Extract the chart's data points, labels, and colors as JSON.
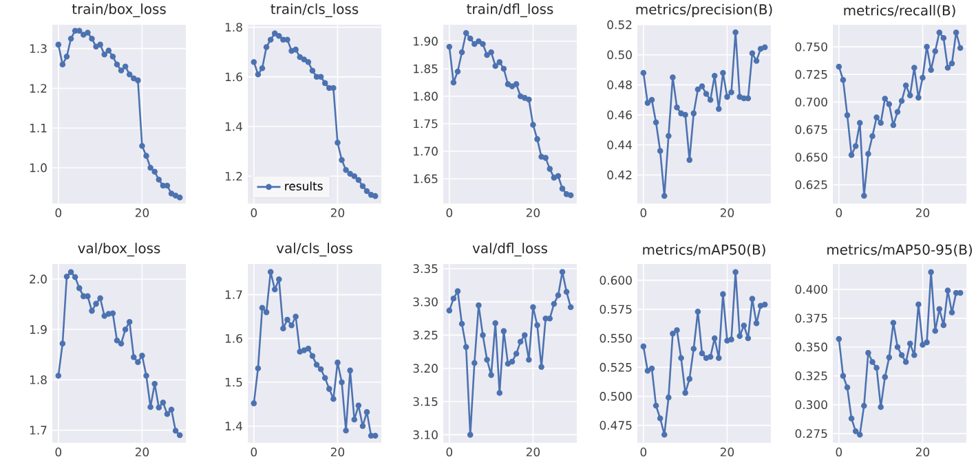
{
  "chart_data": [
    {
      "type": "line",
      "title": "train/box_loss",
      "x": [
        0,
        1,
        2,
        3,
        4,
        5,
        6,
        7,
        8,
        9,
        10,
        11,
        12,
        13,
        14,
        15,
        16,
        17,
        18,
        19,
        20,
        21,
        22,
        23,
        24,
        25,
        26,
        27,
        28,
        29
      ],
      "xlim": [
        -1.45,
        30.45
      ],
      "xticks": [
        0,
        20
      ],
      "ylim": [
        0.91,
        1.36
      ],
      "yticks": [
        {
          "value": 1.0,
          "label": "1.0"
        },
        1.1,
        1.2,
        1.3
      ],
      "grid": true,
      "marker": "circle",
      "series": [
        {
          "color": "#4c72b0",
          "values": [
            1.31,
            1.26,
            1.28,
            1.325,
            1.345,
            1.345,
            1.335,
            1.34,
            1.325,
            1.305,
            1.31,
            1.285,
            1.295,
            1.28,
            1.26,
            1.245,
            1.255,
            1.235,
            1.225,
            1.22,
            1.055,
            1.03,
            1.0,
            0.99,
            0.97,
            0.955,
            0.955,
            0.935,
            0.93,
            0.925
          ]
        }
      ]
    },
    {
      "type": "line",
      "title": "train/cls_loss",
      "x": [
        0,
        1,
        2,
        3,
        4,
        5,
        6,
        7,
        8,
        9,
        10,
        11,
        12,
        13,
        14,
        15,
        16,
        17,
        18,
        19,
        20,
        21,
        22,
        23,
        24,
        25,
        26,
        27,
        28,
        29
      ],
      "xlim": [
        -1.45,
        30.45
      ],
      "xticks": [
        0,
        20
      ],
      "ylim": [
        1.09,
        1.81
      ],
      "yticks": [
        1.2,
        1.4,
        1.6,
        1.8
      ],
      "grid": true,
      "marker": "circle",
      "legend": "bottom left",
      "series": [
        {
          "name": "results",
          "color": "#4c72b0",
          "values": [
            1.66,
            1.61,
            1.635,
            1.72,
            1.75,
            1.775,
            1.765,
            1.75,
            1.75,
            1.705,
            1.71,
            1.68,
            1.67,
            1.66,
            1.625,
            1.6,
            1.6,
            1.575,
            1.555,
            1.555,
            1.335,
            1.265,
            1.225,
            1.21,
            1.2,
            1.185,
            1.16,
            1.14,
            1.125,
            1.12
          ]
        }
      ]
    },
    {
      "type": "line",
      "title": "train/dfl_loss",
      "x": [
        0,
        1,
        2,
        3,
        4,
        5,
        6,
        7,
        8,
        9,
        10,
        11,
        12,
        13,
        14,
        15,
        16,
        17,
        18,
        19,
        20,
        21,
        22,
        23,
        24,
        25,
        26,
        27,
        28,
        29
      ],
      "xlim": [
        -1.45,
        30.45
      ],
      "xticks": [
        0,
        20
      ],
      "ylim": [
        1.605,
        1.93
      ],
      "yticks": [
        1.65,
        {
          "value": 1.7,
          "label": "1.70"
        },
        1.75,
        {
          "value": 1.8,
          "label": "1.80"
        },
        1.85,
        {
          "value": 1.9,
          "label": "1.90"
        }
      ],
      "grid": true,
      "marker": "circle",
      "series": [
        {
          "color": "#4c72b0",
          "values": [
            1.89,
            1.825,
            1.845,
            1.88,
            1.915,
            1.905,
            1.895,
            1.9,
            1.895,
            1.875,
            1.88,
            1.855,
            1.862,
            1.85,
            1.822,
            1.818,
            1.822,
            1.8,
            1.797,
            1.794,
            1.748,
            1.722,
            1.69,
            1.688,
            1.668,
            1.652,
            1.655,
            1.632,
            1.622,
            1.62
          ]
        }
      ]
    },
    {
      "type": "line",
      "title": "metrics/precision(B)",
      "x": [
        0,
        1,
        2,
        3,
        4,
        5,
        6,
        7,
        8,
        9,
        10,
        11,
        12,
        13,
        14,
        15,
        16,
        17,
        18,
        19,
        20,
        21,
        22,
        23,
        24,
        25,
        26,
        27,
        28,
        29
      ],
      "xlim": [
        -1.45,
        30.45
      ],
      "xticks": [
        0,
        20
      ],
      "ylim": [
        0.401,
        0.52
      ],
      "yticks": [
        0.42,
        0.44,
        0.46,
        0.48,
        {
          "value": 0.5,
          "label": "0.50"
        },
        0.52
      ],
      "grid": true,
      "marker": "circle",
      "series": [
        {
          "color": "#4c72b0",
          "values": [
            0.488,
            0.468,
            0.47,
            0.455,
            0.436,
            0.406,
            0.446,
            0.485,
            0.465,
            0.461,
            0.46,
            0.43,
            0.461,
            0.477,
            0.479,
            0.474,
            0.47,
            0.486,
            0.464,
            0.488,
            0.472,
            0.475,
            0.515,
            0.472,
            0.471,
            0.471,
            0.501,
            0.496,
            0.504,
            0.505
          ]
        }
      ]
    },
    {
      "type": "line",
      "title": "metrics/recall(B)",
      "x": [
        0,
        1,
        2,
        3,
        4,
        5,
        6,
        7,
        8,
        9,
        10,
        11,
        12,
        13,
        14,
        15,
        16,
        17,
        18,
        19,
        20,
        21,
        22,
        23,
        24,
        25,
        26,
        27,
        28,
        29
      ],
      "xlim": [
        -1.45,
        30.45
      ],
      "xticks": [
        0,
        20
      ],
      "ylim": [
        0.608,
        0.77
      ],
      "yticks": [
        0.625,
        {
          "value": 0.65,
          "label": "0.650"
        },
        0.675,
        {
          "value": 0.7,
          "label": "0.700"
        },
        0.725,
        {
          "value": 0.75,
          "label": "0.750"
        }
      ],
      "grid": true,
      "marker": "circle",
      "series": [
        {
          "color": "#4c72b0",
          "values": [
            0.732,
            0.72,
            0.688,
            0.652,
            0.66,
            0.681,
            0.615,
            0.653,
            0.669,
            0.686,
            0.681,
            0.703,
            0.698,
            0.679,
            0.691,
            0.701,
            0.715,
            0.706,
            0.731,
            0.704,
            0.722,
            0.75,
            0.729,
            0.746,
            0.763,
            0.758,
            0.731,
            0.735,
            0.763,
            0.749
          ]
        }
      ]
    },
    {
      "type": "line",
      "title": "val/box_loss",
      "x": [
        0,
        1,
        2,
        3,
        4,
        5,
        6,
        7,
        8,
        9,
        10,
        11,
        12,
        13,
        14,
        15,
        16,
        17,
        18,
        19,
        20,
        21,
        22,
        23,
        24,
        25,
        26,
        27,
        28,
        29
      ],
      "xlim": [
        -1.45,
        30.45
      ],
      "xticks": [
        0,
        20
      ],
      "ylim": [
        1.675,
        2.03
      ],
      "yticks": [
        1.7,
        1.8,
        1.9,
        {
          "value": 2.0,
          "label": "2.0"
        }
      ],
      "grid": true,
      "marker": "circle",
      "series": [
        {
          "color": "#4c72b0",
          "values": [
            1.808,
            1.872,
            2.005,
            2.014,
            2.004,
            1.982,
            1.966,
            1.966,
            1.937,
            1.951,
            1.962,
            1.927,
            1.931,
            1.932,
            1.878,
            1.872,
            1.9,
            1.915,
            1.845,
            1.835,
            1.848,
            1.808,
            1.746,
            1.792,
            1.745,
            1.755,
            1.732,
            1.741,
            1.699,
            1.69
          ]
        }
      ]
    },
    {
      "type": "line",
      "title": "val/cls_loss",
      "x": [
        0,
        1,
        2,
        3,
        4,
        5,
        6,
        7,
        8,
        9,
        10,
        11,
        12,
        13,
        14,
        15,
        16,
        17,
        18,
        19,
        20,
        21,
        22,
        23,
        24,
        25,
        26,
        27,
        28,
        29
      ],
      "xlim": [
        -1.45,
        30.45
      ],
      "xticks": [
        0,
        20
      ],
      "ylim": [
        1.362,
        1.77
      ],
      "yticks": [
        1.4,
        1.5,
        1.6,
        1.7
      ],
      "grid": true,
      "marker": "circle",
      "series": [
        {
          "color": "#4c72b0",
          "values": [
            1.452,
            1.532,
            1.67,
            1.66,
            1.752,
            1.712,
            1.735,
            1.623,
            1.643,
            1.63,
            1.65,
            1.57,
            1.573,
            1.577,
            1.56,
            1.54,
            1.53,
            1.51,
            1.485,
            1.462,
            1.545,
            1.5,
            1.39,
            1.527,
            1.415,
            1.447,
            1.4,
            1.432,
            1.378,
            1.378
          ]
        }
      ]
    },
    {
      "type": "line",
      "title": "val/dfl_loss",
      "x": [
        0,
        1,
        2,
        3,
        4,
        5,
        6,
        7,
        8,
        9,
        10,
        11,
        12,
        13,
        14,
        15,
        16,
        17,
        18,
        19,
        20,
        21,
        22,
        23,
        24,
        25,
        26,
        27,
        28,
        29
      ],
      "xlim": [
        -1.45,
        30.45
      ],
      "xticks": [
        0,
        20
      ],
      "ylim": [
        3.088,
        3.357
      ],
      "yticks": [
        {
          "value": 3.1,
          "label": "3.10"
        },
        3.15,
        {
          "value": 3.2,
          "label": "3.20"
        },
        3.25,
        {
          "value": 3.3,
          "label": "3.30"
        },
        3.35
      ],
      "grid": true,
      "marker": "circle",
      "series": [
        {
          "color": "#4c72b0",
          "values": [
            3.287,
            3.305,
            3.316,
            3.267,
            3.232,
            3.1,
            3.208,
            3.295,
            3.25,
            3.213,
            3.19,
            3.268,
            3.163,
            3.256,
            3.207,
            3.21,
            3.222,
            3.24,
            3.25,
            3.213,
            3.292,
            3.265,
            3.202,
            3.275,
            3.275,
            3.297,
            3.31,
            3.345,
            3.315,
            3.292
          ]
        }
      ]
    },
    {
      "type": "line",
      "title": "metrics/mAP50(B)",
      "x": [
        0,
        1,
        2,
        3,
        4,
        5,
        6,
        7,
        8,
        9,
        10,
        11,
        12,
        13,
        14,
        15,
        16,
        17,
        18,
        19,
        20,
        21,
        22,
        23,
        24,
        25,
        26,
        27,
        28,
        29
      ],
      "xlim": [
        -1.45,
        30.45
      ],
      "xticks": [
        0,
        20
      ],
      "ylim": [
        0.46,
        0.614
      ],
      "yticks": [
        0.475,
        {
          "value": 0.5,
          "label": "0.500"
        },
        0.525,
        {
          "value": 0.55,
          "label": "0.550"
        },
        0.575,
        {
          "value": 0.6,
          "label": "0.600"
        }
      ],
      "grid": true,
      "marker": "circle",
      "series": [
        {
          "color": "#4c72b0",
          "values": [
            0.543,
            0.522,
            0.524,
            0.492,
            0.481,
            0.467,
            0.499,
            0.554,
            0.557,
            0.533,
            0.503,
            0.515,
            0.541,
            0.573,
            0.537,
            0.533,
            0.534,
            0.55,
            0.533,
            0.588,
            0.548,
            0.549,
            0.607,
            0.552,
            0.561,
            0.55,
            0.584,
            0.563,
            0.578,
            0.579
          ]
        }
      ]
    },
    {
      "type": "line",
      "title": "metrics/mAP50-95(B)",
      "x": [
        0,
        1,
        2,
        3,
        4,
        5,
        6,
        7,
        8,
        9,
        10,
        11,
        12,
        13,
        14,
        15,
        16,
        17,
        18,
        19,
        20,
        21,
        22,
        23,
        24,
        25,
        26,
        27,
        28,
        29
      ],
      "xlim": [
        -1.45,
        30.45
      ],
      "xticks": [
        0,
        20
      ],
      "ylim": [
        0.267,
        0.422
      ],
      "yticks": [
        0.275,
        {
          "value": 0.3,
          "label": "0.300"
        },
        0.325,
        {
          "value": 0.35,
          "label": "0.350"
        },
        0.375,
        {
          "value": 0.4,
          "label": "0.400"
        }
      ],
      "grid": true,
      "marker": "circle",
      "series": [
        {
          "color": "#4c72b0",
          "values": [
            0.357,
            0.325,
            0.315,
            0.288,
            0.277,
            0.274,
            0.299,
            0.345,
            0.337,
            0.332,
            0.298,
            0.324,
            0.341,
            0.371,
            0.35,
            0.343,
            0.337,
            0.353,
            0.343,
            0.387,
            0.352,
            0.354,
            0.415,
            0.364,
            0.383,
            0.369,
            0.399,
            0.38,
            0.397,
            0.397
          ]
        }
      ]
    }
  ]
}
